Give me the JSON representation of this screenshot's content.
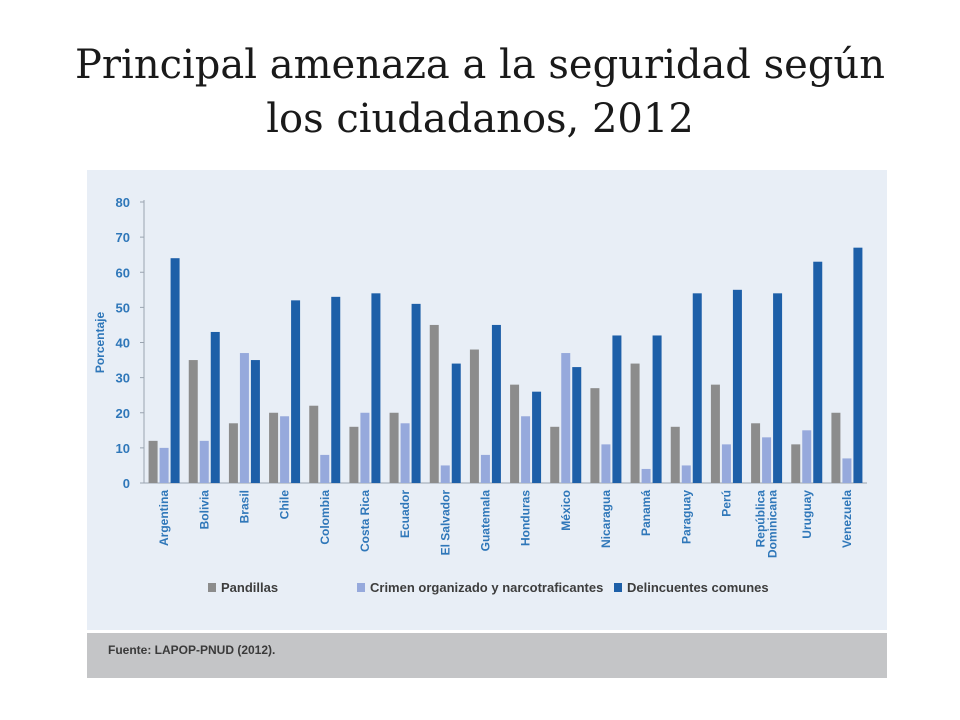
{
  "slide": {
    "title_line1": "Principal amenaza a la seguridad según",
    "title_line2": "los ciudadanos, 2012"
  },
  "source": "Fuente: LAPOP-PNUD (2012).",
  "colors": {
    "pandillas": "#8c8c8c",
    "crimen": "#96a9dc",
    "delincuentes": "#1d5fa8",
    "axis_text": "#2f77b9"
  },
  "chart_data": {
    "type": "bar",
    "title": "",
    "xlabel": "",
    "ylabel": "Porcentaje",
    "ylim": [
      0,
      80
    ],
    "yticks": [
      0,
      10,
      20,
      30,
      40,
      50,
      60,
      70,
      80
    ],
    "grid": false,
    "legend_position": "bottom",
    "categories": [
      "Argentina",
      "Bolivia",
      "Brasil",
      "Chile",
      "Colombia",
      "Costa Rica",
      "Ecuador",
      "El Salvador",
      "Guatemala",
      "Honduras",
      "México",
      "Nicaragua",
      "Panamá",
      "Paraguay",
      "Perú",
      "República Dominicana",
      "Uruguay",
      "Venezuela"
    ],
    "series": [
      {
        "name": "Pandillas",
        "values": [
          12,
          35,
          17,
          20,
          22,
          16,
          20,
          45,
          38,
          28,
          16,
          27,
          34,
          16,
          28,
          17,
          11,
          20
        ]
      },
      {
        "name": "Crimen organizado y narcotraficantes",
        "values": [
          10,
          12,
          37,
          19,
          8,
          20,
          17,
          5,
          8,
          19,
          37,
          11,
          4,
          5,
          11,
          13,
          15,
          7
        ]
      },
      {
        "name": "Delincuentes comunes",
        "values": [
          64,
          43,
          35,
          52,
          53,
          54,
          51,
          34,
          45,
          26,
          33,
          42,
          42,
          54,
          55,
          54,
          63,
          67
        ]
      }
    ]
  }
}
